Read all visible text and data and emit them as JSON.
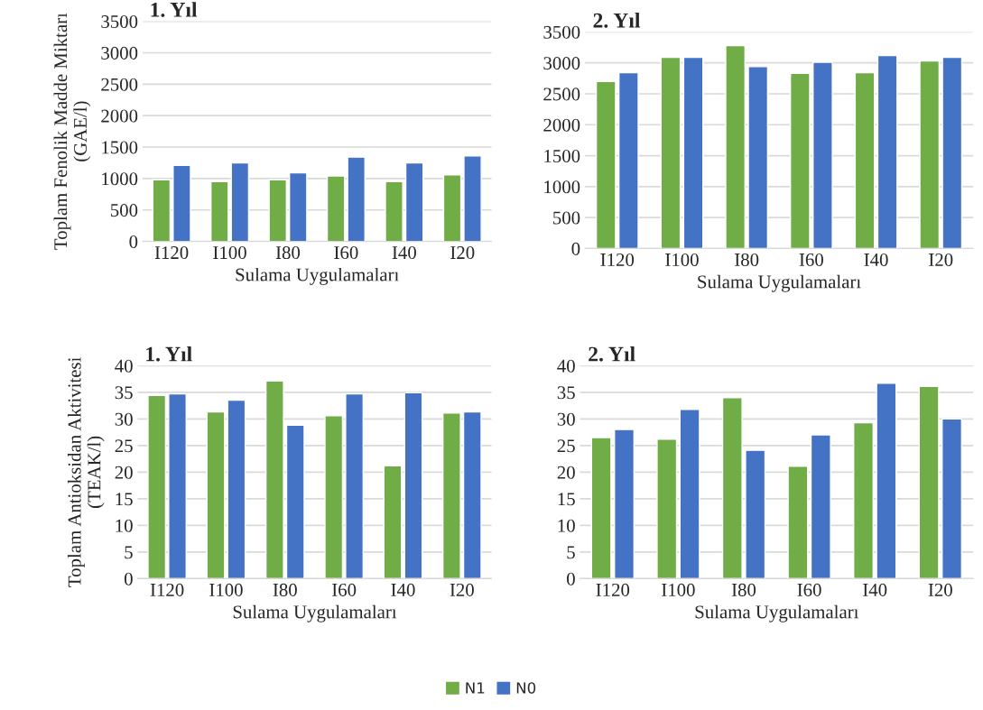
{
  "chart_data": [
    {
      "type": "bar",
      "title": "1. Yıl",
      "ylabel": "Toplam Fenolik Madde Miktarı\n(GAE/l)",
      "xlabel": "Sulama Uygulamaları",
      "categories": [
        "I120",
        "I100",
        "I80",
        "I60",
        "I40",
        "I20"
      ],
      "ylim": [
        0,
        3500
      ],
      "yticks": [
        0,
        500,
        1000,
        1500,
        2000,
        2500,
        3000,
        3500
      ],
      "grid": "y",
      "legend": "bottom",
      "series": [
        {
          "name": "N1",
          "color": "#70ad47",
          "values": [
            980,
            950,
            980,
            1040,
            950,
            1060
          ]
        },
        {
          "name": "N0",
          "color": "#4472c4",
          "values": [
            1210,
            1250,
            1090,
            1340,
            1250,
            1360
          ]
        }
      ]
    },
    {
      "type": "bar",
      "title": "2. Yıl",
      "xlabel": "Sulama Uygulamaları",
      "categories": [
        "I120",
        "I100",
        "I80",
        "I60",
        "I40",
        "I20"
      ],
      "ylim": [
        0,
        3500
      ],
      "yticks": [
        0,
        500,
        1000,
        1500,
        2000,
        2500,
        3000,
        3500
      ],
      "grid": "y",
      "series": [
        {
          "color": "#70ad47",
          "values": [
            2700,
            3090,
            3280,
            2830,
            2840,
            3030
          ]
        },
        {
          "color": "#4472c4",
          "values": [
            2840,
            3090,
            2940,
            3010,
            3120,
            3090
          ]
        }
      ]
    },
    {
      "type": "bar",
      "title": "1. Yıl",
      "ylabel": "Toplam Antioksidan Aktivitesi\n(TEAK/l)",
      "xlabel": "Sulama Uygulamaları",
      "categories": [
        "I120",
        "I100",
        "I80",
        "I60",
        "I40",
        "I20"
      ],
      "ylim": [
        0,
        40
      ],
      "yticks": [
        0,
        5,
        10,
        15,
        20,
        25,
        30,
        35,
        40
      ],
      "grid": "y",
      "series": [
        {
          "color": "#70ad47",
          "values": [
            34.4,
            31.3,
            37.1,
            30.6,
            21.2,
            31.1
          ]
        },
        {
          "color": "#4472c4",
          "values": [
            34.7,
            33.5,
            28.8,
            34.7,
            34.9,
            31.3
          ]
        }
      ]
    },
    {
      "type": "bar",
      "title": "2. Yıl",
      "xlabel": "Sulama Uygulamaları",
      "categories": [
        "I120",
        "I100",
        "I80",
        "I60",
        "I40",
        "I20"
      ],
      "ylim": [
        0,
        40
      ],
      "yticks": [
        0,
        5,
        10,
        15,
        20,
        25,
        30,
        35,
        40
      ],
      "grid": "y",
      "series": [
        {
          "color": "#70ad47",
          "values": [
            26.5,
            26.2,
            34.0,
            21.1,
            29.3,
            36.1
          ]
        },
        {
          "color": "#4472c4",
          "values": [
            28.0,
            31.8,
            24.1,
            27.0,
            36.7,
            30.0
          ]
        }
      ]
    }
  ]
}
